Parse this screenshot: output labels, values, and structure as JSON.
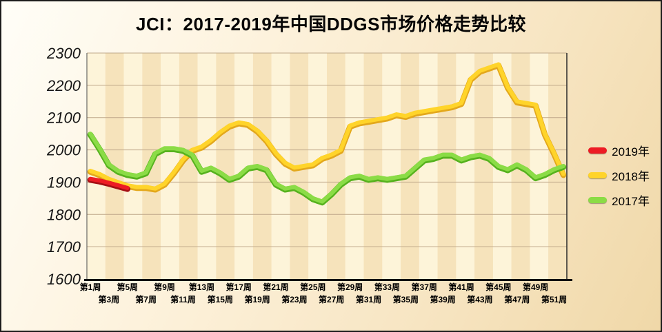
{
  "title": "JCI：2017-2019年中国DDGS市场价格走势比较",
  "chart_data": {
    "type": "line",
    "title": "JCI：2017-2019年中国DDGS市场价格走势比较",
    "ylim": [
      1600,
      2300
    ],
    "y_ticks": [
      2300,
      2200,
      2100,
      2000,
      1900,
      1800,
      1700,
      1600
    ],
    "weeks_range": [
      1,
      52
    ],
    "grid": true,
    "gridline_color": "#bfa88a",
    "band_colors": [
      "#fdf4d9",
      "#f6e3bb"
    ],
    "axis_color": "#111111",
    "legend_position": "right",
    "x_label_rows": [
      {
        "weeks": [
          1,
          5,
          9,
          13,
          17,
          21,
          25,
          29,
          33,
          37,
          41,
          45,
          49
        ],
        "labels": [
          "第1周",
          "第5周",
          "第9周",
          "第13周",
          "第17周",
          "第21周",
          "第25周",
          "第29周",
          "第33周",
          "第37周",
          "第41周",
          "第45周",
          "第49周"
        ]
      },
      {
        "weeks": [
          3,
          7,
          11,
          15,
          19,
          23,
          27,
          31,
          35,
          39,
          43,
          47,
          51
        ],
        "labels": [
          "第3周",
          "第7周",
          "第11周",
          "第15周",
          "第19周",
          "第23周",
          "第27周",
          "第31周",
          "第35周",
          "第39周",
          "第43周",
          "第47周",
          "第51周"
        ]
      }
    ],
    "series": [
      {
        "name": "2019年",
        "color": "#ED1C24",
        "edge_color": "#A50F14",
        "start_week": 1,
        "z": 3,
        "values": [
          1910,
          1905,
          1898,
          1890,
          1882
        ]
      },
      {
        "name": "2018年",
        "color": "#FFD42A",
        "edge_color": "#E3A81C",
        "start_week": 1,
        "z": 1,
        "values": [
          1935,
          1925,
          1910,
          1900,
          1890,
          1885,
          1885,
          1880,
          1895,
          1930,
          1970,
          2000,
          2010,
          2030,
          2055,
          2075,
          2085,
          2080,
          2060,
          2030,
          1990,
          1960,
          1945,
          1950,
          1955,
          1975,
          1985,
          2000,
          2075,
          2085,
          2090,
          2095,
          2100,
          2110,
          2105,
          2115,
          2120,
          2125,
          2130,
          2135,
          2145,
          2220,
          2245,
          2255,
          2265,
          2195,
          2150,
          2145,
          2140,
          2050,
          1990,
          1925
        ]
      },
      {
        "name": "2017年",
        "color": "#8BDC46",
        "edge_color": "#56B21E",
        "start_week": 1,
        "z": 2,
        "values": [
          2050,
          2005,
          1955,
          1935,
          1925,
          1920,
          1930,
          1990,
          2005,
          2005,
          2000,
          1985,
          1935,
          1945,
          1930,
          1910,
          1920,
          1945,
          1950,
          1940,
          1895,
          1880,
          1885,
          1870,
          1850,
          1840,
          1865,
          1895,
          1915,
          1920,
          1910,
          1915,
          1910,
          1915,
          1920,
          1945,
          1970,
          1975,
          1985,
          1985,
          1970,
          1980,
          1985,
          1975,
          1950,
          1940,
          1955,
          1940,
          1915,
          1925,
          1940,
          1950
        ]
      }
    ],
    "legend_items": [
      "2019年",
      "2018年",
      "2017年"
    ]
  }
}
